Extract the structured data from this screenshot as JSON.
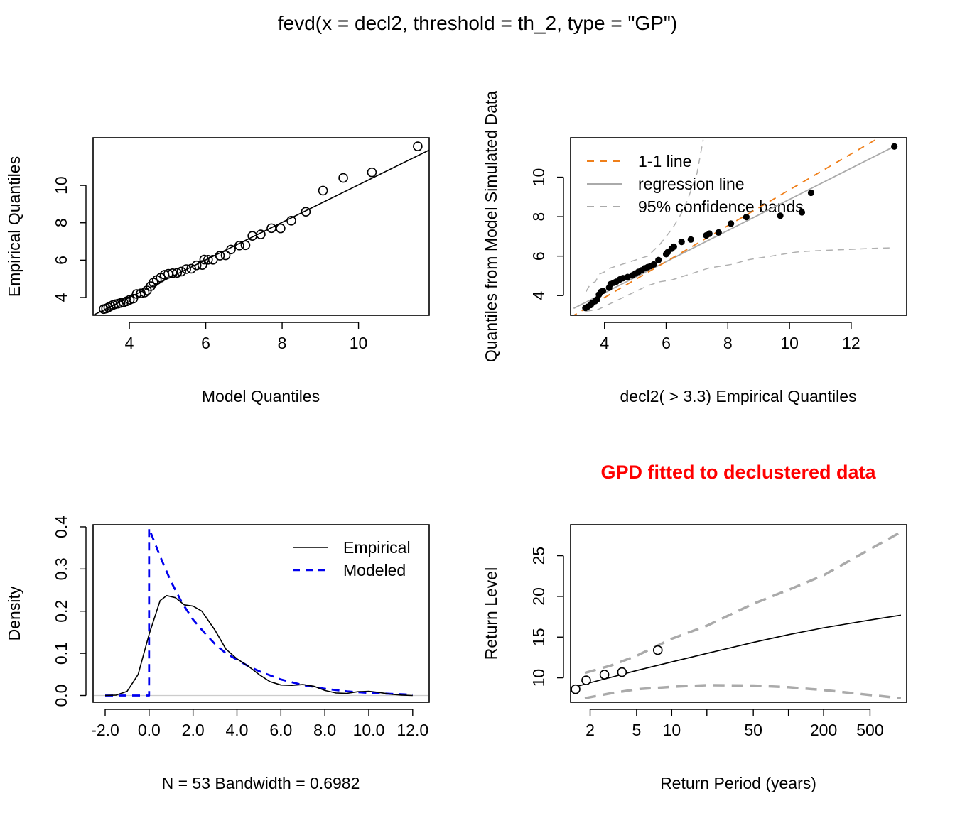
{
  "main_title": "fevd(x = decl2, threshold = th_2, type = \"GP\")",
  "chart_data": [
    {
      "type": "scatter",
      "panel": "qq-model",
      "xlabel": "Model Quantiles",
      "ylabel": "Empirical Quantiles",
      "xlim": [
        3.05,
        11.85
      ],
      "ylim": [
        3.05,
        12.55
      ],
      "xticks": [
        4,
        6,
        8,
        10
      ],
      "yticks": [
        4,
        6,
        8,
        10
      ],
      "points": [
        [
          3.33,
          3.38
        ],
        [
          3.39,
          3.41
        ],
        [
          3.45,
          3.47
        ],
        [
          3.51,
          3.54
        ],
        [
          3.57,
          3.6
        ],
        [
          3.63,
          3.64
        ],
        [
          3.7,
          3.67
        ],
        [
          3.77,
          3.71
        ],
        [
          3.85,
          3.74
        ],
        [
          3.93,
          3.8
        ],
        [
          4.01,
          3.88
        ],
        [
          4.1,
          3.94
        ],
        [
          4.19,
          4.19
        ],
        [
          4.3,
          4.22
        ],
        [
          4.4,
          4.27
        ],
        [
          4.46,
          4.38
        ],
        [
          4.56,
          4.61
        ],
        [
          4.63,
          4.8
        ],
        [
          4.72,
          4.94
        ],
        [
          4.82,
          5.06
        ],
        [
          4.92,
          5.22
        ],
        [
          5.02,
          5.27
        ],
        [
          5.13,
          5.3
        ],
        [
          5.25,
          5.32
        ],
        [
          5.36,
          5.39
        ],
        [
          5.49,
          5.52
        ],
        [
          5.62,
          5.54
        ],
        [
          5.76,
          5.72
        ],
        [
          5.91,
          5.74
        ],
        [
          5.96,
          6.03
        ],
        [
          6.06,
          6.02
        ],
        [
          6.19,
          6.02
        ],
        [
          6.37,
          6.24
        ],
        [
          6.52,
          6.26
        ],
        [
          6.66,
          6.57
        ],
        [
          6.88,
          6.78
        ],
        [
          7.04,
          6.8
        ],
        [
          7.22,
          7.3
        ],
        [
          7.44,
          7.38
        ],
        [
          7.72,
          7.71
        ],
        [
          7.96,
          7.7
        ],
        [
          8.24,
          8.11
        ],
        [
          8.62,
          8.59
        ],
        [
          9.07,
          9.72
        ],
        [
          9.6,
          10.4
        ],
        [
          10.35,
          10.7
        ],
        [
          11.55,
          12.09
        ]
      ],
      "line": [
        [
          3.05,
          3.05
        ],
        [
          11.85,
          11.89
        ]
      ]
    },
    {
      "type": "scatter",
      "panel": "qq-simulated",
      "xlabel": "decl2( > 3.3) Empirical Quantiles",
      "ylabel": "Quantiles from Model Simulated Data",
      "xlim": [
        2.9,
        13.8
      ],
      "ylim": [
        3.0,
        12.0
      ],
      "xticks": [
        4,
        6,
        8,
        10,
        12
      ],
      "yticks": [
        4,
        6,
        8,
        10
      ],
      "legend": [
        {
          "label": "1-1 line",
          "color": "#ef7f1a",
          "dash": "dashed"
        },
        {
          "label": "regression line",
          "color": "#aaaaaa",
          "dash": "solid"
        },
        {
          "label": "95% confidence bands",
          "color": "#aaaaaa",
          "dash": "dashed"
        }
      ],
      "points": [
        [
          3.38,
          3.37
        ],
        [
          3.45,
          3.43
        ],
        [
          3.55,
          3.52
        ],
        [
          3.6,
          3.62
        ],
        [
          3.7,
          3.72
        ],
        [
          3.76,
          3.8
        ],
        [
          3.82,
          4.05
        ],
        [
          3.88,
          4.18
        ],
        [
          3.95,
          4.24
        ],
        [
          4.15,
          4.4
        ],
        [
          4.2,
          4.58
        ],
        [
          4.3,
          4.65
        ],
        [
          4.38,
          4.7
        ],
        [
          4.5,
          4.82
        ],
        [
          4.6,
          4.88
        ],
        [
          4.75,
          4.94
        ],
        [
          4.9,
          5.02
        ],
        [
          5.0,
          5.12
        ],
        [
          5.1,
          5.2
        ],
        [
          5.2,
          5.28
        ],
        [
          5.3,
          5.38
        ],
        [
          5.4,
          5.44
        ],
        [
          5.5,
          5.5
        ],
        [
          5.6,
          5.58
        ],
        [
          5.75,
          5.8
        ],
        [
          6.0,
          6.1
        ],
        [
          6.05,
          6.2
        ],
        [
          6.18,
          6.38
        ],
        [
          6.25,
          6.48
        ],
        [
          6.5,
          6.72
        ],
        [
          6.8,
          6.84
        ],
        [
          7.3,
          7.05
        ],
        [
          7.4,
          7.14
        ],
        [
          7.7,
          7.2
        ],
        [
          8.1,
          7.65
        ],
        [
          8.6,
          7.98
        ],
        [
          9.7,
          8.05
        ],
        [
          10.4,
          8.22
        ],
        [
          10.7,
          9.21
        ],
        [
          13.4,
          11.56
        ]
      ],
      "one_to_one": [
        [
          2.9,
          2.9
        ],
        [
          12.9,
          12.0
        ]
      ],
      "regression": [
        [
          3.0,
          3.35
        ],
        [
          13.4,
          11.56
        ]
      ],
      "upper_band": [
        [
          3.4,
          4.2
        ],
        [
          3.55,
          4.6
        ],
        [
          3.7,
          4.7
        ],
        [
          3.85,
          5.1
        ],
        [
          4.0,
          5.2
        ],
        [
          4.2,
          5.4
        ],
        [
          4.4,
          5.5
        ],
        [
          4.6,
          5.6
        ],
        [
          4.8,
          5.7
        ],
        [
          5.0,
          5.8
        ],
        [
          5.2,
          5.9
        ],
        [
          5.4,
          6.0
        ],
        [
          5.6,
          6.3
        ],
        [
          5.8,
          6.6
        ],
        [
          6.0,
          7.0
        ],
        [
          6.2,
          7.4
        ],
        [
          6.4,
          7.9
        ],
        [
          6.6,
          8.5
        ],
        [
          6.8,
          9.3
        ],
        [
          7.0,
          10.2
        ],
        [
          7.2,
          11.9
        ]
      ],
      "lower_band": [
        [
          3.4,
          3.2
        ],
        [
          3.8,
          3.3
        ],
        [
          4.2,
          3.6
        ],
        [
          4.6,
          3.9
        ],
        [
          5.0,
          4.2
        ],
        [
          5.4,
          4.5
        ],
        [
          5.8,
          4.7
        ],
        [
          6.2,
          4.8
        ],
        [
          6.6,
          5.0
        ],
        [
          7.0,
          5.2
        ],
        [
          7.4,
          5.4
        ],
        [
          7.8,
          5.5
        ],
        [
          8.2,
          5.6
        ],
        [
          8.6,
          5.8
        ],
        [
          9.0,
          5.9
        ],
        [
          9.4,
          6.0
        ],
        [
          9.8,
          6.1
        ],
        [
          10.2,
          6.2
        ],
        [
          10.6,
          6.25
        ],
        [
          11.0,
          6.28
        ],
        [
          11.6,
          6.32
        ],
        [
          12.2,
          6.36
        ],
        [
          12.8,
          6.4
        ],
        [
          13.4,
          6.42
        ]
      ]
    },
    {
      "type": "line",
      "panel": "density",
      "xlabel": "N = 53   Bandwidth = 0.6982",
      "ylabel": "Density",
      "xlim": [
        -2.55,
        12.75
      ],
      "ylim": [
        -0.016,
        0.405
      ],
      "xticks": [
        -2,
        0,
        2,
        4,
        6,
        8,
        10,
        12
      ],
      "yticks": [
        0.0,
        0.1,
        0.2,
        0.3,
        0.4
      ],
      "legend": [
        {
          "label": "Empirical",
          "color": "#000000",
          "dash": "solid"
        },
        {
          "label": "Modeled",
          "color": "#0000ee",
          "dash": "dashed"
        }
      ],
      "series": [
        {
          "name": "Empirical",
          "x": [
            -2,
            -1.5,
            -1,
            -0.5,
            0,
            0.5,
            0.8,
            1.2,
            1.6,
            2.0,
            2.4,
            3.0,
            3.5,
            4.0,
            4.5,
            5.0,
            5.5,
            6.0,
            6.5,
            7.0,
            7.5,
            8.0,
            8.5,
            9.0,
            9.5,
            10.0,
            10.5,
            11.0,
            11.5,
            12.0
          ],
          "y": [
            0.0,
            0.001,
            0.01,
            0.05,
            0.145,
            0.225,
            0.237,
            0.232,
            0.215,
            0.212,
            0.2,
            0.155,
            0.11,
            0.087,
            0.07,
            0.05,
            0.033,
            0.025,
            0.024,
            0.026,
            0.022,
            0.012,
            0.006,
            0.005,
            0.009,
            0.01,
            0.007,
            0.003,
            0.001,
            0.0
          ]
        },
        {
          "name": "Modeled",
          "x": [
            -2,
            0,
            0,
            0.5,
            1.0,
            1.5,
            2.0,
            2.5,
            3.0,
            3.5,
            4.0,
            4.5,
            5.0,
            6.0,
            7.0,
            8.0,
            9.0,
            10.0,
            11.0,
            12.0
          ],
          "y": [
            0.0,
            0.0,
            0.396,
            0.33,
            0.27,
            0.22,
            0.18,
            0.15,
            0.122,
            0.1,
            0.085,
            0.07,
            0.058,
            0.038,
            0.025,
            0.016,
            0.01,
            0.006,
            0.004,
            0.002
          ]
        }
      ]
    },
    {
      "type": "line",
      "panel": "return-level",
      "title": "GPD fitted to declustered data",
      "xlabel": "Return Period (years)",
      "ylabel": "Return Level",
      "xscale": "log",
      "xlim": [
        1.36,
        1030
      ],
      "ylim": [
        7.0,
        28.8
      ],
      "xticks": [
        2,
        5,
        10,
        50,
        200,
        500
      ],
      "extra_xticks": [
        20,
        100
      ],
      "yticks": [
        10,
        15,
        20,
        25
      ],
      "points": [
        [
          1.5,
          8.6
        ],
        [
          1.85,
          9.7
        ],
        [
          2.65,
          10.4
        ],
        [
          3.75,
          10.7
        ],
        [
          7.6,
          13.4
        ]
      ],
      "series": [
        {
          "name": "estimate",
          "x": [
            1.5,
            2,
            3,
            5,
            10,
            20,
            50,
            100,
            200,
            500,
            920
          ],
          "y": [
            8.9,
            9.4,
            10.05,
            10.9,
            11.95,
            13.0,
            14.35,
            15.3,
            16.15,
            17.1,
            17.7
          ]
        },
        {
          "name": "upper",
          "x": [
            1.8,
            3,
            5,
            10,
            20,
            50,
            100,
            200,
            500,
            920
          ],
          "y": [
            10.6,
            11.5,
            12.7,
            14.8,
            16.4,
            19.1,
            20.8,
            22.6,
            25.8,
            27.9
          ]
        },
        {
          "name": "lower",
          "x": [
            1.8,
            3,
            5,
            10,
            20,
            50,
            100,
            200,
            500,
            920
          ],
          "y": [
            7.5,
            8.1,
            8.6,
            8.9,
            9.1,
            9.05,
            8.85,
            8.5,
            7.9,
            7.5
          ]
        }
      ]
    }
  ]
}
